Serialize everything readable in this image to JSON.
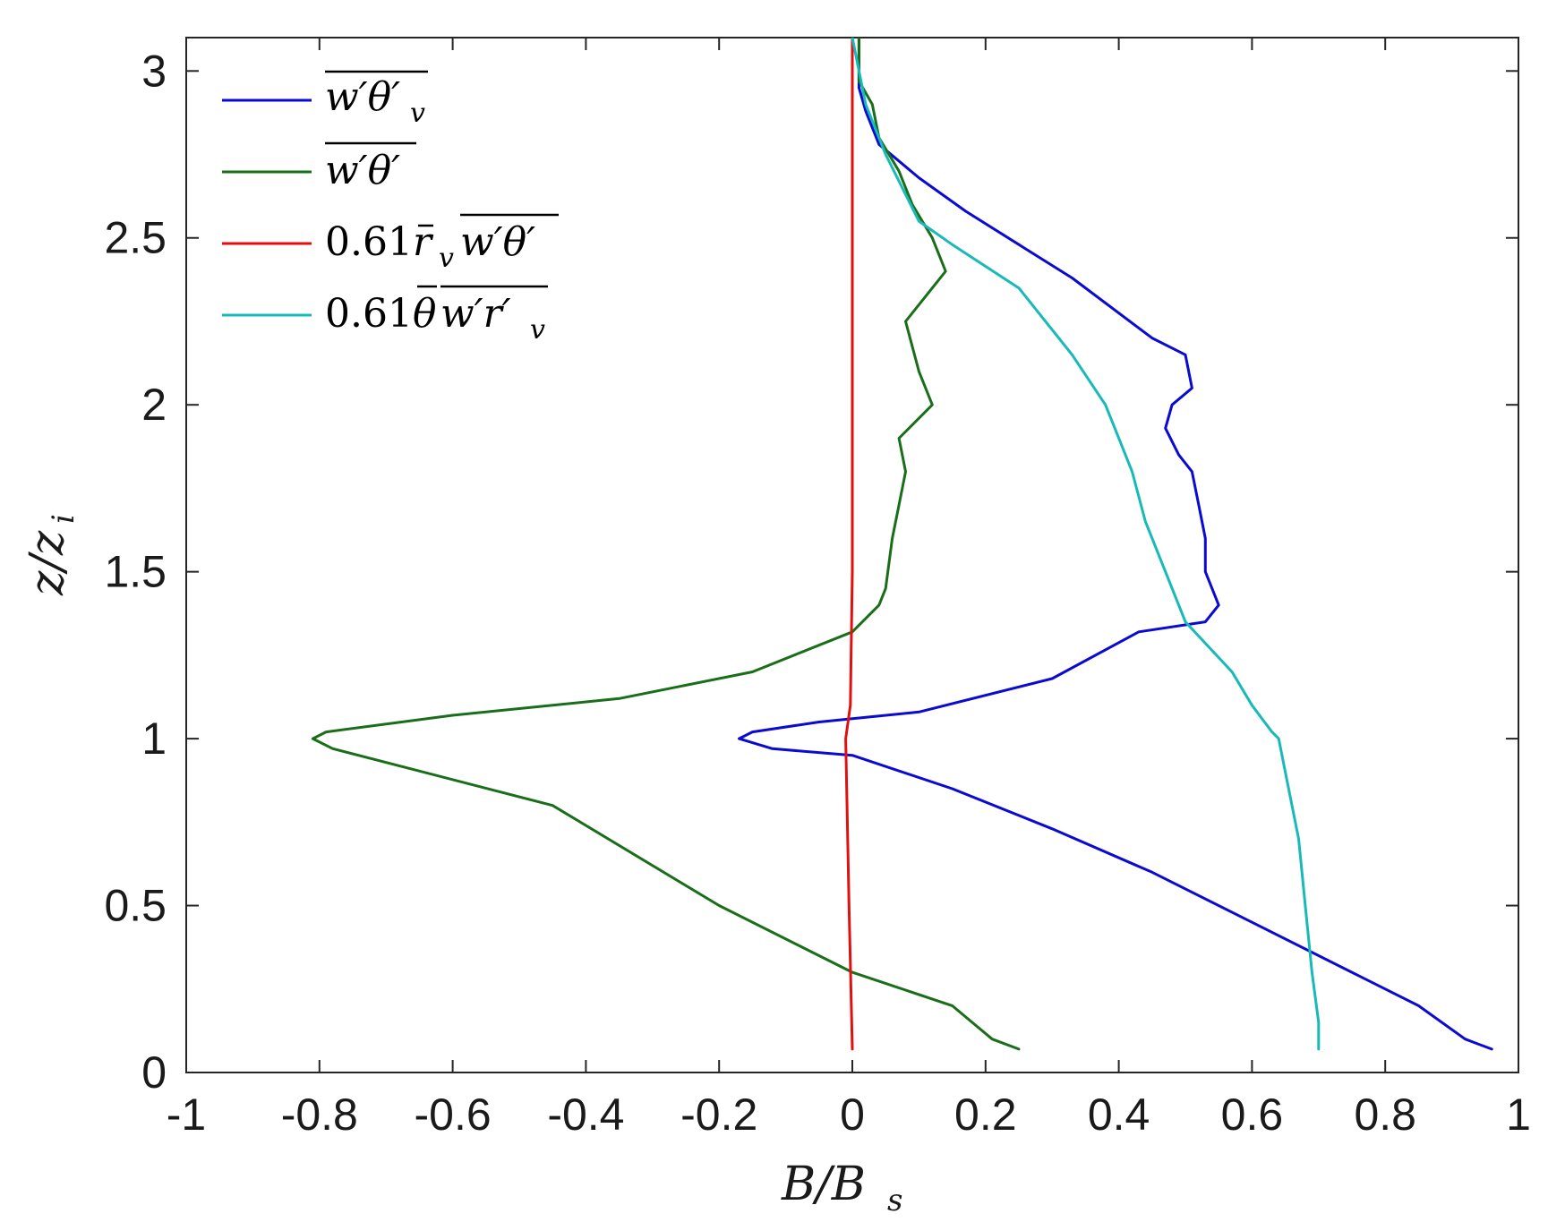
{
  "chart_data": {
    "type": "line",
    "xlabel": "B/B_s",
    "ylabel": "z/z_i",
    "xlim": [
      -1,
      1
    ],
    "ylim": [
      0,
      3.1
    ],
    "xticks": [
      "-1",
      "-0.8",
      "-0.6",
      "-0.4",
      "-0.2",
      "0",
      "0.2",
      "0.4",
      "0.6",
      "0.8",
      "1"
    ],
    "yticks": [
      "0",
      "0.5",
      "1",
      "1.5",
      "2",
      "2.5",
      "3"
    ],
    "grid": false,
    "legend_position": "top-left",
    "series": [
      {
        "name": "w'θ'_v (overbar)",
        "color": "#0a0ad2",
        "x": [
          0.96,
          0.92,
          0.85,
          0.75,
          0.6,
          0.45,
          0.3,
          0.15,
          0.0,
          -0.12,
          -0.17,
          -0.15,
          -0.05,
          0.1,
          0.3,
          0.43,
          0.53,
          0.55,
          0.53,
          0.53,
          0.52,
          0.51,
          0.49,
          0.47,
          0.48,
          0.51,
          0.5,
          0.45,
          0.33,
          0.25,
          0.17,
          0.1,
          0.04,
          0.02,
          0.01,
          0.01
        ],
        "y": [
          0.07,
          0.1,
          0.2,
          0.3,
          0.45,
          0.6,
          0.73,
          0.85,
          0.95,
          0.97,
          1.0,
          1.02,
          1.05,
          1.08,
          1.18,
          1.32,
          1.35,
          1.4,
          1.5,
          1.6,
          1.7,
          1.8,
          1.85,
          1.93,
          2.0,
          2.05,
          2.15,
          2.2,
          2.38,
          2.48,
          2.58,
          2.68,
          2.78,
          2.88,
          2.95,
          3.1
        ]
      },
      {
        "name": "w'θ' (overbar)",
        "color": "#1a6e1a",
        "x": [
          0.25,
          0.21,
          0.15,
          0.0,
          -0.2,
          -0.45,
          -0.78,
          -0.81,
          -0.79,
          -0.6,
          -0.35,
          -0.15,
          0.0,
          0.04,
          0.05,
          0.06,
          0.07,
          0.08,
          0.07,
          0.12,
          0.1,
          0.08,
          0.12,
          0.14,
          0.12,
          0.09,
          0.07,
          0.04,
          0.03,
          0.01,
          0.01
        ],
        "y": [
          0.07,
          0.1,
          0.2,
          0.3,
          0.5,
          0.8,
          0.97,
          1.0,
          1.02,
          1.07,
          1.12,
          1.2,
          1.32,
          1.4,
          1.45,
          1.6,
          1.7,
          1.8,
          1.9,
          2.0,
          2.1,
          2.25,
          2.35,
          2.4,
          2.5,
          2.6,
          2.7,
          2.8,
          2.9,
          2.97,
          3.1
        ]
      },
      {
        "name": "0.61 r̄_v w'θ' (overbar)",
        "color": "#e01010",
        "x": [
          0.0,
          -0.005,
          -0.01,
          -0.003,
          0.0,
          0.0,
          0.0,
          0.0,
          0.0
        ],
        "y": [
          0.07,
          0.5,
          1.0,
          1.1,
          1.5,
          2.0,
          2.5,
          2.95,
          3.1
        ]
      },
      {
        "name": "0.61 θ̄ w'r'_v (overbar)",
        "color": "#18b9b9",
        "x": [
          0.7,
          0.7,
          0.69,
          0.68,
          0.67,
          0.65,
          0.64,
          0.63,
          0.6,
          0.57,
          0.5,
          0.47,
          0.44,
          0.42,
          0.39,
          0.38,
          0.33,
          0.25,
          0.15,
          0.1,
          0.05,
          0.02,
          0.0
        ],
        "y": [
          0.07,
          0.15,
          0.3,
          0.5,
          0.7,
          0.9,
          1.0,
          1.02,
          1.1,
          1.2,
          1.35,
          1.5,
          1.65,
          1.8,
          1.95,
          2.0,
          2.15,
          2.35,
          2.48,
          2.55,
          2.75,
          2.9,
          3.1
        ]
      }
    ]
  }
}
